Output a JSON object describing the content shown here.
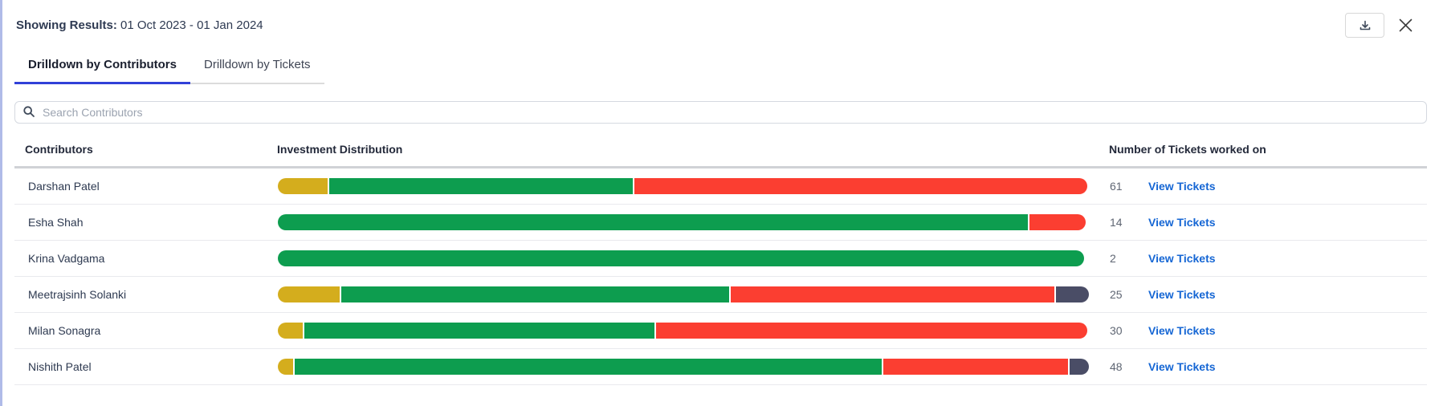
{
  "header": {
    "results_label": "Showing Results:",
    "date_range": "01 Oct 2023 - 01 Jan 2024"
  },
  "tabs": [
    {
      "label": "Drilldown by Contributors",
      "active": true
    },
    {
      "label": "Drilldown by Tickets",
      "active": false
    }
  ],
  "search": {
    "placeholder": "Search Contributors"
  },
  "table": {
    "columns": [
      "Contributors",
      "Investment Distribution",
      "Number of Tickets worked on"
    ],
    "view_tickets_label": "View Tickets",
    "rows": [
      {
        "name": "Darshan Patel",
        "tickets": "61",
        "segments": [
          {
            "color": "yellow",
            "pct": 6.2
          },
          {
            "color": "green",
            "pct": 37.6
          },
          {
            "color": "red",
            "pct": 56.2
          }
        ]
      },
      {
        "name": "Esha Shah",
        "tickets": "14",
        "segments": [
          {
            "color": "green",
            "pct": 93.0
          },
          {
            "color": "red",
            "pct": 7.0
          }
        ]
      },
      {
        "name": "Krina Vadgama",
        "tickets": "2",
        "segments": [
          {
            "color": "green",
            "pct": 100
          }
        ]
      },
      {
        "name": "Meetrajsinh Solanki",
        "tickets": "25",
        "segments": [
          {
            "color": "yellow",
            "pct": 7.7
          },
          {
            "color": "green",
            "pct": 48.1
          },
          {
            "color": "red",
            "pct": 40.1
          },
          {
            "color": "dark",
            "pct": 4.1
          }
        ]
      },
      {
        "name": "Milan Sonagra",
        "tickets": "30",
        "segments": [
          {
            "color": "yellow",
            "pct": 3.1
          },
          {
            "color": "green",
            "pct": 43.4
          },
          {
            "color": "red",
            "pct": 53.5
          }
        ]
      },
      {
        "name": "Nishith Patel",
        "tickets": "48",
        "segments": [
          {
            "color": "yellow",
            "pct": 1.9
          },
          {
            "color": "green",
            "pct": 72.8
          },
          {
            "color": "red",
            "pct": 22.9
          },
          {
            "color": "dark",
            "pct": 2.4
          }
        ]
      }
    ]
  },
  "colors": {
    "yellow": "#d4ad1d",
    "green": "#0d9d4f",
    "red": "#fb3e31",
    "dark": "#4a4d66",
    "accent": "#3140d8",
    "link": "#1566d4",
    "left_strip": "#b0bbe8"
  }
}
